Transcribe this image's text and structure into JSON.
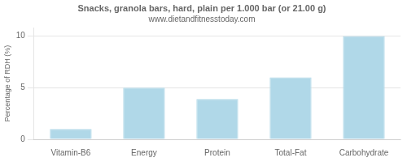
{
  "chart_data": {
    "type": "bar",
    "title": "Snacks, granola bars, hard, plain per 1.000 bar (or 21.00 g)",
    "subtitle": "www.dietandfitnesstoday.com",
    "categories": [
      "Vitamin-B6",
      "Energy",
      "Protein",
      "Total-Fat",
      "Carbohydrate"
    ],
    "values": [
      1.0,
      5.0,
      3.9,
      6.0,
      10.0
    ],
    "color": "#b0d8e8",
    "ylabel": "Percentage of RDH (%)",
    "ylim": [
      0,
      10.8
    ],
    "yticks": [
      0,
      5,
      10
    ],
    "grid": true
  }
}
